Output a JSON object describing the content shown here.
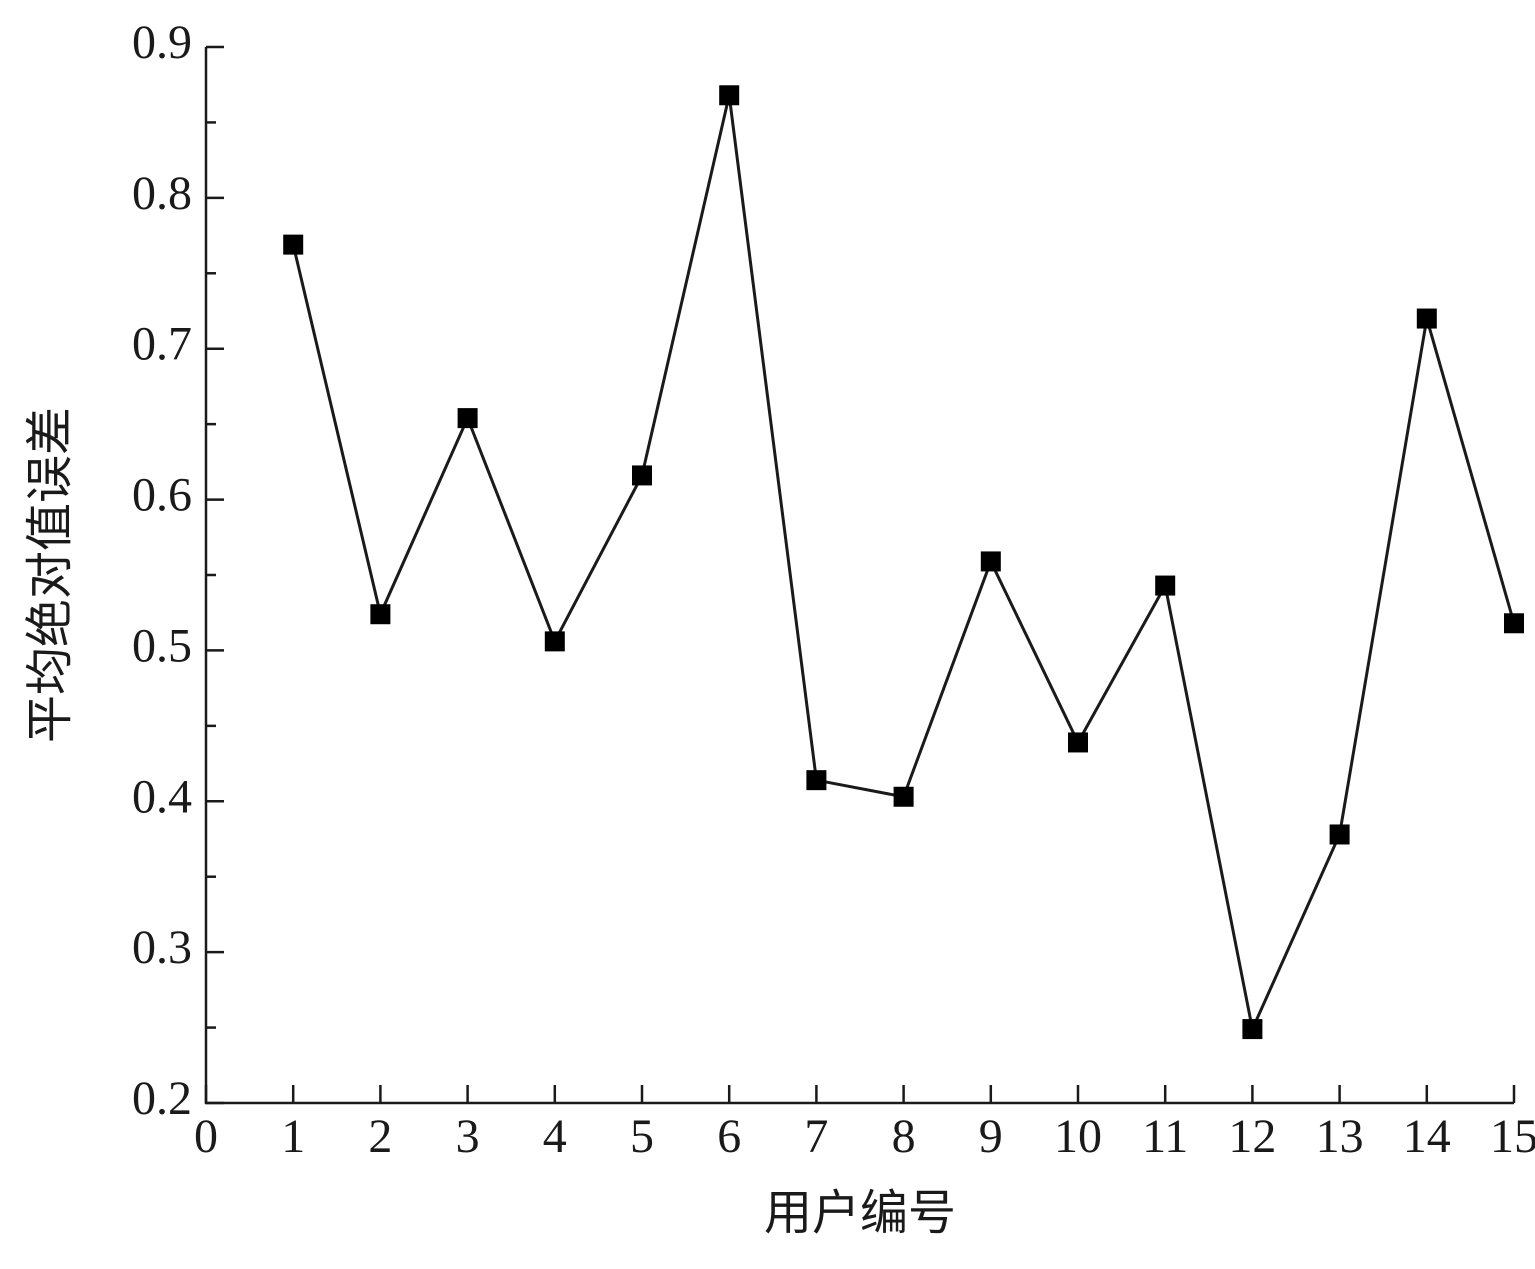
{
  "chart_data": {
    "type": "line",
    "xlabel": "用户编号",
    "ylabel": "平均绝对值误差",
    "x": [
      1,
      2,
      3,
      4,
      5,
      6,
      7,
      8,
      9,
      10,
      11,
      12,
      13,
      14,
      15
    ],
    "series": [
      {
        "color": "#1a1a1a",
        "values": [
          0.769,
          0.524,
          0.654,
          0.506,
          0.616,
          0.868,
          0.414,
          0.403,
          0.559,
          0.439,
          0.543,
          0.249,
          0.378,
          0.72,
          0.518
        ]
      }
    ],
    "xlim": [
      0,
      15
    ],
    "xticks": [
      0,
      1,
      2,
      3,
      4,
      5,
      6,
      7,
      8,
      9,
      10,
      11,
      12,
      13,
      14,
      15
    ],
    "ylim": [
      0.2,
      0.9
    ],
    "yticks": [
      0.2,
      0.3,
      0.4,
      0.5,
      0.6,
      0.7,
      0.8,
      0.9
    ],
    "grid": false,
    "marker": "square"
  }
}
